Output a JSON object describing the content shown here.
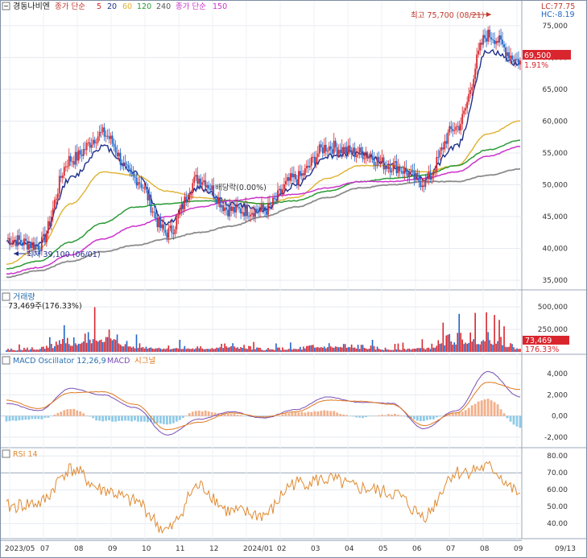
{
  "header": {
    "stock_name": "경동나비엔",
    "legend_price_prefix": "종가 단순",
    "legend_periods": [
      "5",
      "20",
      "60",
      "120",
      "240"
    ],
    "legend_volume_prefix": "종가 단순",
    "legend_volume_period": "150",
    "lc_label": "LC:77.75",
    "hc_label": "HC:-8.19"
  },
  "colors": {
    "ma5": "#d9262e",
    "ma20": "#1f2f8c",
    "ma60": "#e0b130",
    "ma120": "#2a9a35",
    "ma240": "#cc33cc",
    "ma150_vol": "#8c8c8c",
    "up": "#d9262e",
    "down": "#1f64c8",
    "macd": "#7a4fb5",
    "signal": "#e07a20",
    "osc_pos": "#f3b08a",
    "osc_neg": "#8fcbe8",
    "rsi": "#e08a30"
  },
  "price_panel": {
    "y_ticks": [
      "35,000",
      "40,000",
      "45,000",
      "50,000",
      "55,000",
      "60,000",
      "65,000",
      "70,000",
      "75,000"
    ],
    "current_price": "69,500",
    "change_pct": "1.91%",
    "high_label": "최고 75,700 (08/21)",
    "low_label": "최저 39,100 (06/01)",
    "dividend_label": "배당락(0.00%)"
  },
  "volume_panel": {
    "title": "거래량",
    "info": "73,469주(176.33%)",
    "y_ticks": [
      "500,000",
      "250,000"
    ],
    "current_value": "73,469",
    "current_pct": "176.33%"
  },
  "macd_panel": {
    "title_osc": "MACD Oscillator 12,26,9",
    "title_macd": "MACD",
    "title_signal": "시그널",
    "y_ticks": [
      "4,000",
      "2,000",
      "0,00",
      "-2,000"
    ]
  },
  "rsi_panel": {
    "title": "RSI 14",
    "y_ticks": [
      "80.00",
      "70.00",
      "60.00",
      "50.00",
      "40.00"
    ]
  },
  "x_axis": {
    "labels": [
      "2023/05",
      "07",
      "08",
      "09",
      "10",
      "11",
      "12",
      "2024/01",
      "02",
      "03",
      "04",
      "05",
      "06",
      "07",
      "08",
      "09",
      "09/13"
    ]
  },
  "chart_data": {
    "type": "line",
    "title": "경동나비엔",
    "price": {
      "x": [
        "2023/05",
        "2023/06",
        "2023/07",
        "2023/08",
        "2023/09",
        "2023/10",
        "2023/11",
        "2023/12",
        "2024/01",
        "2024/02",
        "2024/03",
        "2024/04",
        "2024/05",
        "2024/06",
        "2024/07",
        "2024/08",
        "2024/09/13"
      ],
      "close": [
        41500,
        40500,
        54000,
        58000,
        51000,
        42500,
        51000,
        46000,
        46000,
        51000,
        56000,
        55000,
        53000,
        50500,
        59000,
        73500,
        69500
      ],
      "ylim": [
        34000,
        77000
      ]
    },
    "moving_averages": [
      {
        "name": "5",
        "values": [
          41500,
          40500,
          54000,
          58000,
          51000,
          42500,
          51000,
          46000,
          46000,
          51000,
          56000,
          55000,
          53000,
          50500,
          59000,
          73500,
          69500
        ]
      },
      {
        "name": "20",
        "values": [
          41000,
          40500,
          51000,
          56000,
          52000,
          44000,
          49500,
          47000,
          46000,
          50000,
          54500,
          55000,
          53000,
          51000,
          56000,
          71000,
          69000
        ]
      },
      {
        "name": "60",
        "values": [
          37500,
          40000,
          47000,
          52000,
          51500,
          49000,
          48000,
          47500,
          47000,
          48000,
          51000,
          53000,
          53000,
          52000,
          53000,
          58000,
          60000
        ]
      },
      {
        "name": "120",
        "values": [
          36800,
          38000,
          41000,
          44000,
          46500,
          47000,
          47500,
          47500,
          47000,
          47500,
          49000,
          50500,
          51000,
          51500,
          53000,
          55500,
          57000
        ]
      },
      {
        "name": "240",
        "values": [
          36000,
          37000,
          39000,
          41500,
          43500,
          45000,
          46500,
          47500,
          48000,
          48500,
          49500,
          50500,
          50500,
          51000,
          52000,
          54500,
          56000
        ]
      },
      {
        "name": "150",
        "values": [
          35500,
          36500,
          38000,
          39500,
          40500,
          41500,
          42500,
          43500,
          45000,
          46500,
          48000,
          49500,
          50000,
          50500,
          50500,
          51500,
          52500
        ]
      }
    ],
    "volume": {
      "ylim": [
        0,
        600000
      ],
      "values": [
        40000,
        60000,
        180000,
        300000,
        110000,
        80000,
        70000,
        110000,
        50000,
        60000,
        110000,
        90000,
        50000,
        80000,
        240000,
        250000,
        73469
      ]
    },
    "macd": {
      "ylim": [
        -2700,
        4700
      ],
      "macd": [
        1200,
        500,
        2600,
        2000,
        800,
        -1800,
        -300,
        400,
        -200,
        600,
        1800,
        1300,
        1200,
        -1200,
        500,
        4200,
        1800
      ],
      "signal": [
        1500,
        700,
        2200,
        2300,
        1100,
        -1300,
        -600,
        300,
        -100,
        400,
        1500,
        1400,
        1100,
        -900,
        300,
        3200,
        2500
      ]
    },
    "rsi": {
      "ylim": [
        32,
        82
      ],
      "values": [
        50,
        52,
        72,
        60,
        53,
        36,
        62,
        47,
        45,
        64,
        66,
        61,
        58,
        45,
        70,
        73,
        58
      ]
    }
  }
}
